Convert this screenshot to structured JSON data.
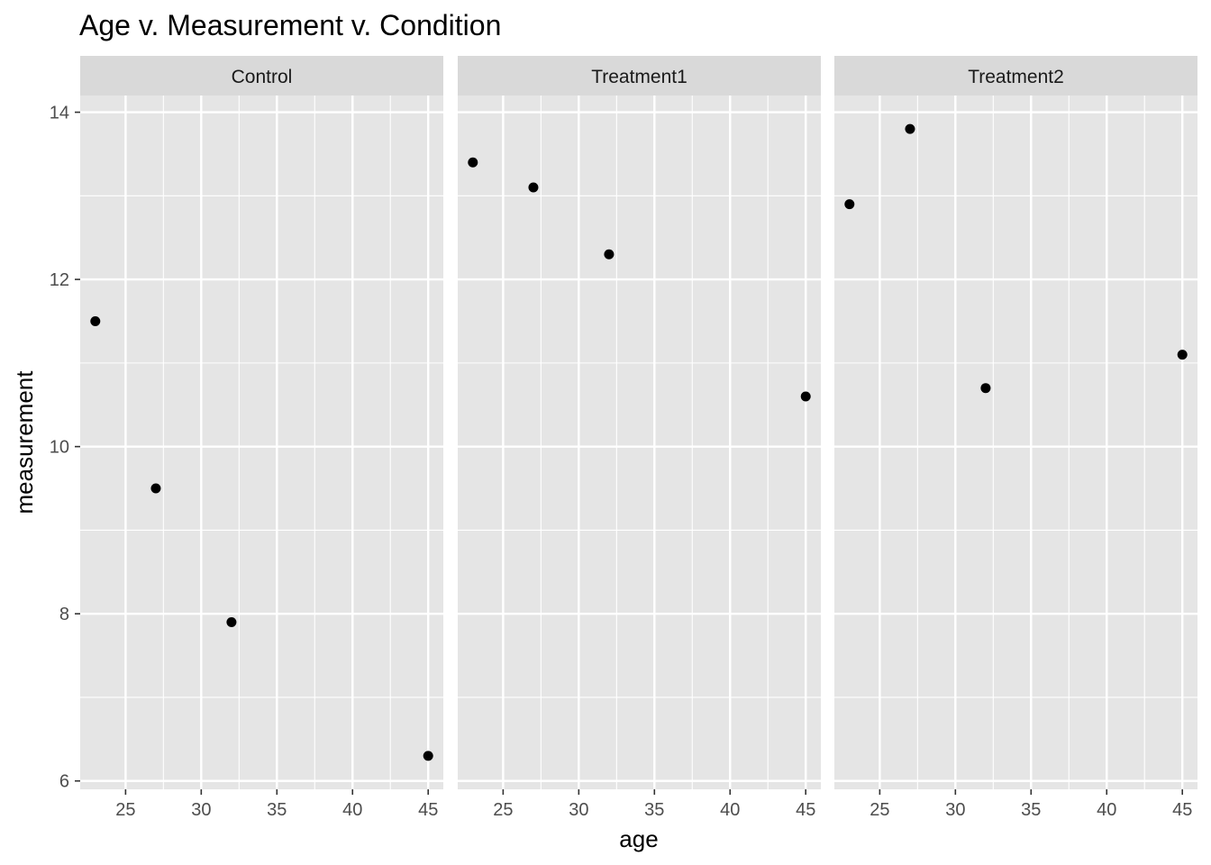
{
  "chart_data": {
    "type": "scatter",
    "title": "Age v. Measurement v. Condition",
    "xlabel": "age",
    "ylabel": "measurement",
    "xlim": [
      22,
      46
    ],
    "ylim": [
      5.9,
      14.2
    ],
    "x_ticks": [
      25,
      30,
      35,
      40,
      45
    ],
    "y_ticks": [
      6,
      8,
      10,
      12,
      14
    ],
    "grid": true,
    "legend": "none",
    "colors": {
      "panel_background": "#e5e5e5",
      "strip_background": "#d9d9d9",
      "grid": "#ffffff",
      "point": "#000000"
    },
    "facets": [
      {
        "label": "Control",
        "points": [
          {
            "x": 23,
            "y": 11.5
          },
          {
            "x": 27,
            "y": 9.5
          },
          {
            "x": 32,
            "y": 7.9
          },
          {
            "x": 45,
            "y": 6.3
          }
        ]
      },
      {
        "label": "Treatment1",
        "points": [
          {
            "x": 23,
            "y": 13.4
          },
          {
            "x": 27,
            "y": 13.1
          },
          {
            "x": 32,
            "y": 12.3
          },
          {
            "x": 45,
            "y": 10.6
          }
        ]
      },
      {
        "label": "Treatment2",
        "points": [
          {
            "x": 23,
            "y": 12.9
          },
          {
            "x": 27,
            "y": 13.8
          },
          {
            "x": 32,
            "y": 10.7
          },
          {
            "x": 45,
            "y": 11.1
          }
        ]
      }
    ]
  }
}
